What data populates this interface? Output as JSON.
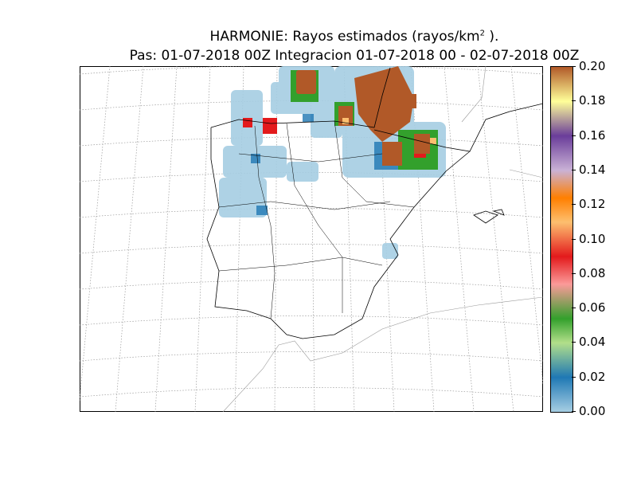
{
  "title": {
    "line1_prefix": "HARMONIE: Rayos estimados  (rayos/km",
    "line1_sup": "2",
    "line1_suffix": " ).",
    "line2": "Pas: 01-07-2018 00Z Integracion 01-07-2018 00 - 02-07-2018 00Z"
  },
  "colorbar": {
    "ticks": [
      "0.20",
      "0.18",
      "0.16",
      "0.14",
      "0.12",
      "0.10",
      "0.08",
      "0.06",
      "0.04",
      "0.02",
      "0.00"
    ],
    "range": [
      0.0,
      0.2
    ],
    "colors": [
      "#a6cee3",
      "#1f78b4",
      "#b2df8a",
      "#33a02c",
      "#fb9a99",
      "#e31a1c",
      "#fdbf6f",
      "#ff7f00",
      "#cab2d6",
      "#6a3d9a",
      "#ffff99",
      "#b15928"
    ]
  }
}
